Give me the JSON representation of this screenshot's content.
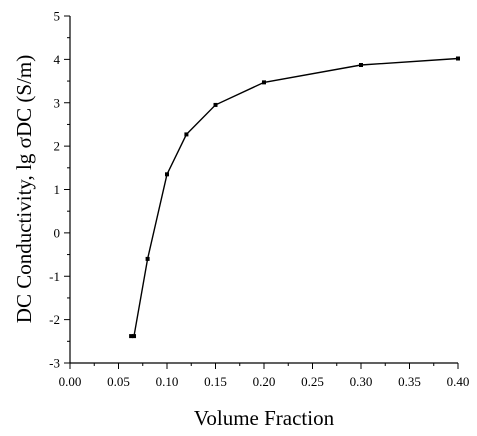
{
  "chart_data": {
    "type": "line",
    "title": "",
    "xlabel": "Volume Fraction",
    "ylabel": "DC Conductivity, lg σDC (S/m)",
    "xlim": [
      0.0,
      0.4
    ],
    "ylim": [
      -3,
      5
    ],
    "x_ticks": [
      "0.00",
      "0.05",
      "0.10",
      "0.15",
      "0.20",
      "0.25",
      "0.30",
      "0.35",
      "0.40"
    ],
    "y_ticks": [
      "-3",
      "-2",
      "-1",
      "0",
      "1",
      "2",
      "3",
      "4",
      "5"
    ],
    "grid": false,
    "legend": "none",
    "series": [
      {
        "x": [
          0.063,
          0.066,
          0.08,
          0.1,
          0.12,
          0.15,
          0.2,
          0.3,
          0.4
        ],
        "y": [
          -2.38,
          -2.38,
          -0.6,
          1.35,
          2.27,
          2.95,
          3.47,
          3.87,
          4.02
        ],
        "color": "#000000",
        "marker": "square"
      }
    ]
  }
}
